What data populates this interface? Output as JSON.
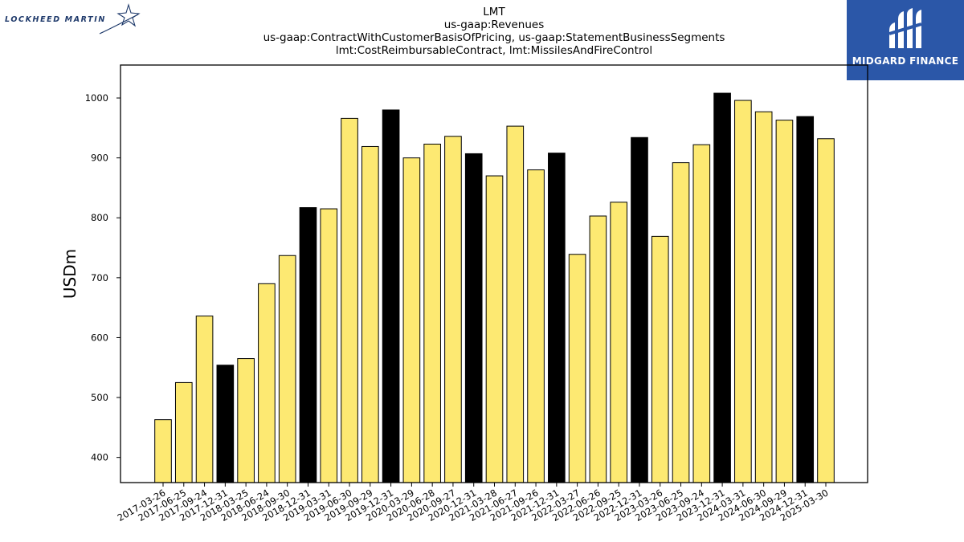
{
  "logos": {
    "left_text": "LOCKHEED MARTIN",
    "right_text": "MIDGARD FINANCE",
    "right_bg": "#2b57a8"
  },
  "titles": [
    "LMT",
    "us-gaap:Revenues",
    "us-gaap:ContractWithCustomerBasisOfPricing, us-gaap:StatementBusinessSegments",
    "lmt:CostReimbursableContract, lmt:MissilesAndFireControl"
  ],
  "chart_data": {
    "type": "bar",
    "ylabel": "USDm",
    "xlabel": "",
    "ylim": [
      358,
      1055
    ],
    "yticks": [
      400,
      500,
      600,
      700,
      800,
      900,
      1000
    ],
    "colors": {
      "regular": "#fde972",
      "highlight": "#000000"
    },
    "categories": [
      "2017-03-26",
      "2017-06-25",
      "2017-09-24",
      "2017-12-31",
      "2018-03-25",
      "2018-06-24",
      "2018-09-30",
      "2018-12-31",
      "2019-03-31",
      "2019-06-30",
      "2019-09-29",
      "2019-12-31",
      "2020-03-29",
      "2020-06-28",
      "2020-09-27",
      "2020-12-31",
      "2021-03-28",
      "2021-06-27",
      "2021-09-26",
      "2021-12-31",
      "2022-03-27",
      "2022-06-26",
      "2022-09-25",
      "2022-12-31",
      "2023-03-26",
      "2023-06-25",
      "2023-09-24",
      "2023-12-31",
      "2024-03-31",
      "2024-06-30",
      "2024-09-29",
      "2024-12-31",
      "2025-03-30"
    ],
    "values": [
      463,
      525,
      636,
      554,
      565,
      690,
      737,
      817,
      815,
      966,
      919,
      980,
      900,
      923,
      936,
      907,
      870,
      953,
      880,
      908,
      739,
      803,
      826,
      934,
      769,
      892,
      922,
      1008,
      996,
      977,
      963,
      969,
      932
    ],
    "highlight": [
      false,
      false,
      false,
      true,
      false,
      false,
      false,
      true,
      false,
      false,
      false,
      true,
      false,
      false,
      false,
      true,
      false,
      false,
      false,
      true,
      false,
      false,
      false,
      true,
      false,
      false,
      false,
      true,
      false,
      false,
      false,
      true,
      false
    ]
  }
}
